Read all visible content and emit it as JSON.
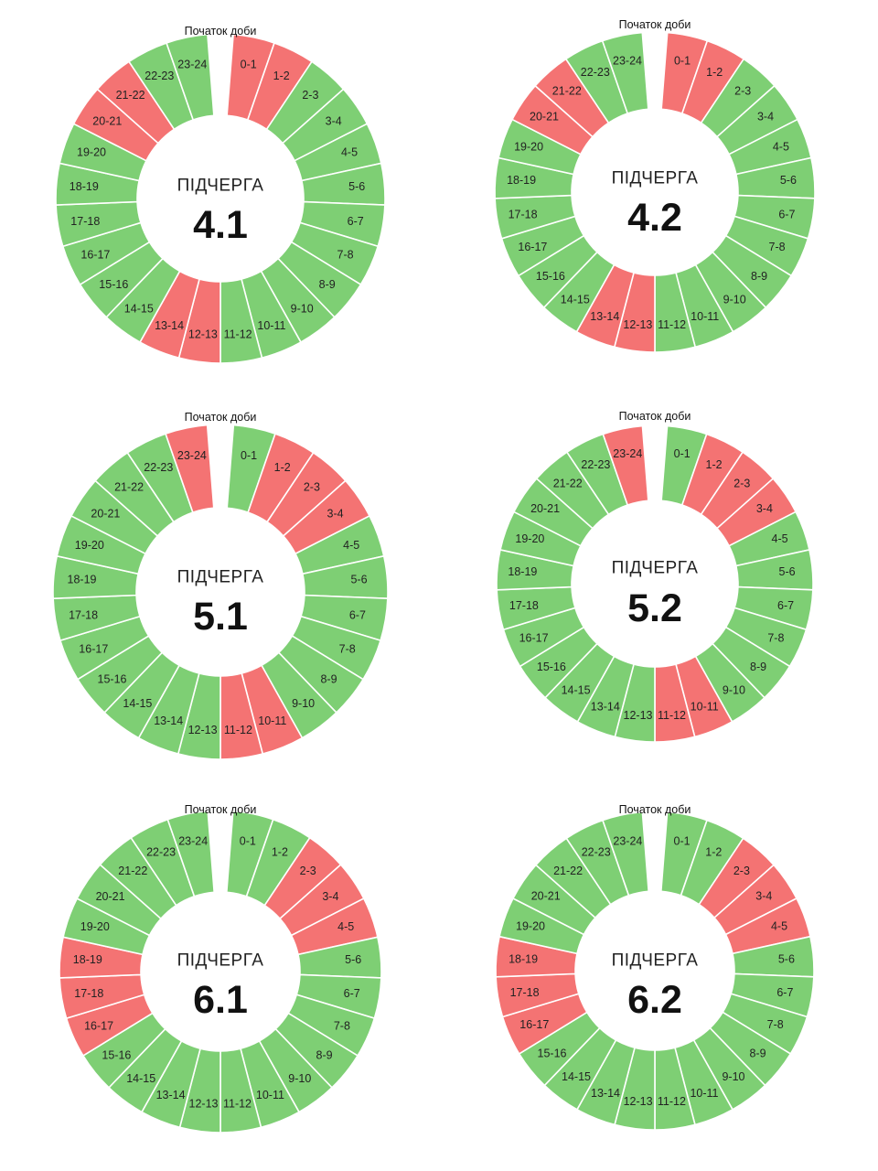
{
  "labels": {
    "start_of_day": "Початок доби",
    "queue_word": "ПІДЧЕРГА"
  },
  "colors": {
    "on": "#7ecf74",
    "off": "#f47373",
    "separator": "#ffffff",
    "text": "#222222"
  },
  "hours": [
    "0-1",
    "1-2",
    "2-3",
    "3-4",
    "4-5",
    "5-6",
    "6-7",
    "7-8",
    "8-9",
    "9-10",
    "10-11",
    "11-12",
    "12-13",
    "13-14",
    "14-15",
    "15-16",
    "16-17",
    "17-18",
    "18-19",
    "19-20",
    "20-21",
    "21-22",
    "22-23",
    "23-24"
  ],
  "diagrams": [
    {
      "name": "4.1",
      "status": [
        0,
        0,
        1,
        1,
        1,
        1,
        1,
        1,
        1,
        1,
        1,
        1,
        0,
        0,
        1,
        1,
        1,
        1,
        1,
        1,
        0,
        0,
        1,
        1
      ]
    },
    {
      "name": "4.2",
      "status": [
        0,
        0,
        1,
        1,
        1,
        1,
        1,
        1,
        1,
        1,
        1,
        1,
        0,
        0,
        1,
        1,
        1,
        1,
        1,
        1,
        0,
        0,
        1,
        1
      ]
    },
    {
      "name": "5.1",
      "status": [
        1,
        0,
        0,
        0,
        1,
        1,
        1,
        1,
        1,
        1,
        0,
        0,
        1,
        1,
        1,
        1,
        1,
        1,
        1,
        1,
        1,
        1,
        1,
        0
      ]
    },
    {
      "name": "5.2",
      "status": [
        1,
        0,
        0,
        0,
        1,
        1,
        1,
        1,
        1,
        1,
        0,
        0,
        1,
        1,
        1,
        1,
        1,
        1,
        1,
        1,
        1,
        1,
        1,
        0
      ]
    },
    {
      "name": "6.1",
      "status": [
        1,
        1,
        0,
        0,
        0,
        1,
        1,
        1,
        1,
        1,
        1,
        1,
        1,
        1,
        1,
        1,
        0,
        0,
        0,
        1,
        1,
        1,
        1,
        1
      ]
    },
    {
      "name": "6.2",
      "status": [
        1,
        1,
        0,
        0,
        0,
        1,
        1,
        1,
        1,
        1,
        1,
        1,
        1,
        1,
        1,
        1,
        0,
        0,
        0,
        1,
        1,
        1,
        1,
        1
      ]
    }
  ]
}
